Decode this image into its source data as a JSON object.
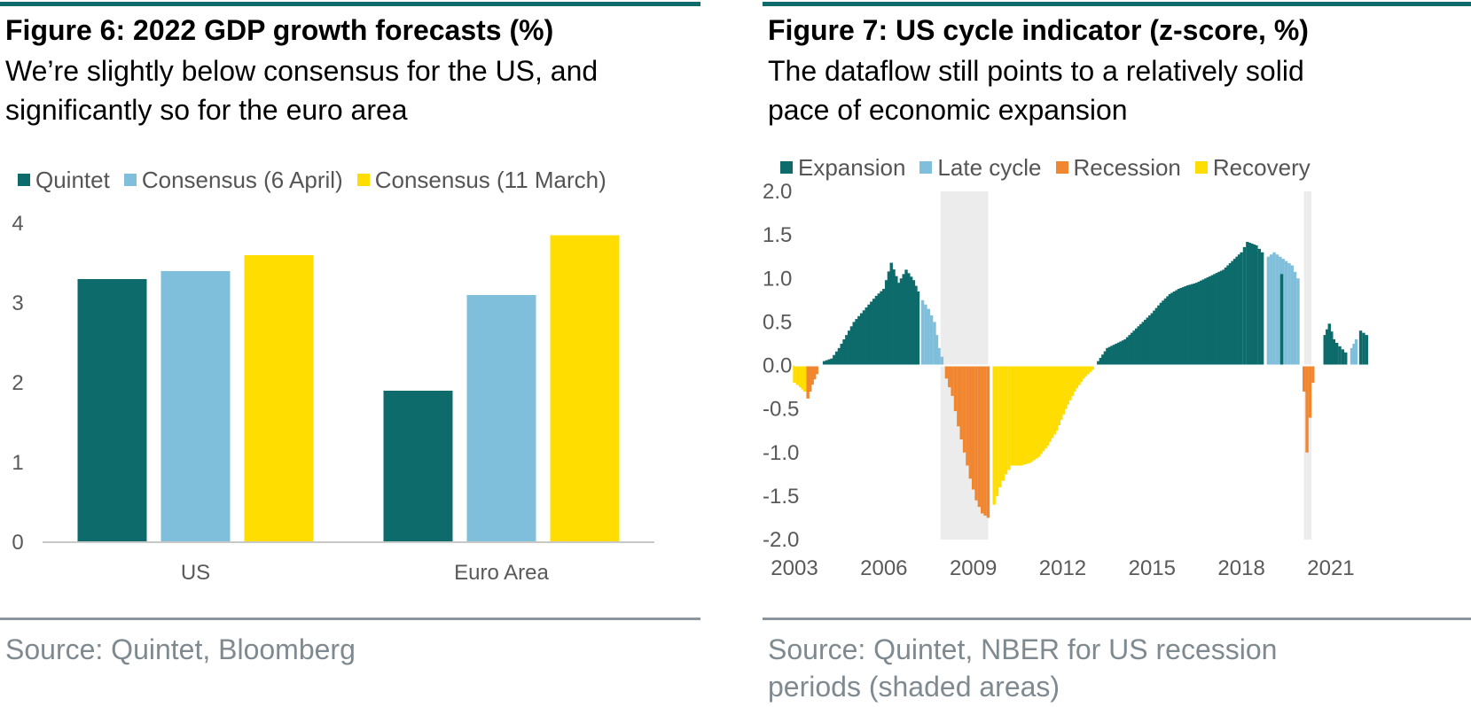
{
  "left": {
    "title": "Figure 6: 2022 GDP growth forecasts (%)",
    "subtitle_lines": [
      "We’re slightly below consensus for the US, and",
      "significantly so for the euro area"
    ],
    "source": "Source: Quintet, Bloomberg"
  },
  "right": {
    "title": "Figure 7: US cycle indicator (z-score, %)",
    "subtitle_lines": [
      "The dataflow still points to a relatively solid",
      "pace of economic expansion"
    ],
    "source_lines": [
      "Source: Quintet, NBER for US recession",
      "periods (shaded areas)"
    ]
  },
  "colors": {
    "teal": "#0d6b6b",
    "light_blue": "#7fbfdb",
    "yellow": "#ffdd00",
    "orange": "#f0862f",
    "shade": "#ececec"
  },
  "chart_data": [
    {
      "type": "bar",
      "categories": [
        "US",
        "Euro Area"
      ],
      "series": [
        {
          "name": "Quintet",
          "values": [
            3.3,
            1.9
          ]
        },
        {
          "name": "Consensus (6 April)",
          "values": [
            3.4,
            3.1
          ]
        },
        {
          "name": "Consensus (11 March)",
          "values": [
            3.6,
            3.85
          ]
        }
      ],
      "ylim": [
        0,
        4
      ],
      "yticks": [
        "0",
        "1",
        "2",
        "3",
        "4"
      ],
      "legend_position": "top",
      "grid": false
    },
    {
      "type": "bar",
      "x_start_year": 2003,
      "x_end_year": 2022.4,
      "xticks": [
        "2003",
        "2006",
        "2009",
        "2012",
        "2015",
        "2018",
        "2021"
      ],
      "ylim": [
        -2.0,
        2.0
      ],
      "yticks": [
        "2.0",
        "1.5",
        "1.0",
        "0.5",
        "0.0",
        "-0.5",
        "-1.0",
        "-1.5",
        "-2.0"
      ],
      "legend_position": "top",
      "grid": false,
      "recession_periods": [
        [
          2007.9,
          2009.5
        ],
        [
          2020.1,
          2020.35
        ]
      ],
      "phases": [
        {
          "name": "Expansion",
          "color_key": "teal"
        },
        {
          "name": "Late cycle",
          "color_key": "light_blue"
        },
        {
          "name": "Recession",
          "color_key": "orange"
        },
        {
          "name": "Recovery",
          "color_key": "yellow"
        }
      ],
      "series": [
        {
          "phase": "Recovery",
          "points": [
            [
              2003.0,
              -0.2
            ],
            [
              2003.2,
              -0.25
            ],
            [
              2003.35,
              -0.3
            ]
          ]
        },
        {
          "phase": "Recession",
          "points": [
            [
              2003.45,
              -0.38
            ],
            [
              2003.6,
              -0.22
            ],
            [
              2003.75,
              -0.1
            ]
          ]
        },
        {
          "phase": "Expansion",
          "points": [
            [
              2004.0,
              0.05
            ],
            [
              2004.25,
              0.08
            ],
            [
              2004.5,
              0.2
            ],
            [
              2004.75,
              0.35
            ],
            [
              2005.0,
              0.5
            ],
            [
              2005.25,
              0.6
            ],
            [
              2005.5,
              0.7
            ],
            [
              2005.75,
              0.8
            ],
            [
              2006.0,
              0.88
            ],
            [
              2006.25,
              1.18
            ],
            [
              2006.5,
              0.95
            ],
            [
              2006.75,
              1.1
            ],
            [
              2007.0,
              0.98
            ],
            [
              2007.15,
              0.85
            ]
          ]
        },
        {
          "phase": "Late cycle",
          "points": [
            [
              2007.3,
              0.75
            ],
            [
              2007.5,
              0.65
            ],
            [
              2007.7,
              0.5
            ],
            [
              2007.85,
              0.2
            ],
            [
              2007.95,
              0.1
            ]
          ]
        },
        {
          "phase": "Recession",
          "points": [
            [
              2008.1,
              -0.15
            ],
            [
              2008.3,
              -0.35
            ],
            [
              2008.5,
              -0.7
            ],
            [
              2008.7,
              -1.0
            ],
            [
              2008.9,
              -1.3
            ],
            [
              2009.1,
              -1.55
            ],
            [
              2009.3,
              -1.7
            ],
            [
              2009.5,
              -1.75
            ]
          ]
        },
        {
          "phase": "Recovery",
          "points": [
            [
              2009.7,
              -1.6
            ],
            [
              2009.9,
              -1.4
            ],
            [
              2010.1,
              -1.25
            ],
            [
              2010.3,
              -1.15
            ],
            [
              2010.6,
              -1.15
            ],
            [
              2010.9,
              -1.12
            ],
            [
              2011.2,
              -1.05
            ],
            [
              2011.5,
              -0.92
            ],
            [
              2011.8,
              -0.75
            ],
            [
              2012.1,
              -0.5
            ],
            [
              2012.4,
              -0.3
            ],
            [
              2012.7,
              -0.15
            ],
            [
              2013.0,
              -0.05
            ]
          ]
        },
        {
          "phase": "Expansion",
          "points": [
            [
              2013.2,
              0.05
            ],
            [
              2013.5,
              0.2
            ],
            [
              2013.8,
              0.25
            ],
            [
              2014.1,
              0.3
            ],
            [
              2014.4,
              0.4
            ],
            [
              2014.7,
              0.5
            ],
            [
              2015.0,
              0.6
            ],
            [
              2015.3,
              0.72
            ],
            [
              2015.6,
              0.82
            ],
            [
              2015.9,
              0.88
            ],
            [
              2016.2,
              0.92
            ],
            [
              2016.5,
              0.95
            ],
            [
              2016.8,
              1.0
            ],
            [
              2017.1,
              1.05
            ],
            [
              2017.4,
              1.1
            ],
            [
              2017.7,
              1.2
            ],
            [
              2018.0,
              1.3
            ],
            [
              2018.2,
              1.42
            ],
            [
              2018.5,
              1.38
            ],
            [
              2018.7,
              1.3
            ]
          ]
        },
        {
          "phase": "Late cycle",
          "points": [
            [
              2018.9,
              1.25
            ],
            [
              2019.1,
              1.3
            ],
            [
              2019.3,
              1.25
            ],
            [
              2019.5,
              1.2
            ],
            [
              2019.7,
              1.15
            ],
            [
              2019.9,
              1.0
            ]
          ]
        },
        {
          "phase": "Expansion",
          "points": [
            [
              2019.35,
              1.05
            ]
          ]
        },
        {
          "phase": "Recession",
          "points": [
            [
              2020.1,
              -0.3
            ],
            [
              2020.2,
              -1.0
            ],
            [
              2020.3,
              -0.6
            ],
            [
              2020.4,
              -0.2
            ]
          ]
        },
        {
          "phase": "Expansion",
          "points": [
            [
              2020.8,
              0.35
            ],
            [
              2020.95,
              0.48
            ],
            [
              2021.1,
              0.3
            ],
            [
              2021.3,
              0.22
            ],
            [
              2021.5,
              0.15
            ]
          ]
        },
        {
          "phase": "Late cycle",
          "points": [
            [
              2021.7,
              0.2
            ],
            [
              2021.85,
              0.3
            ]
          ]
        },
        {
          "phase": "Expansion",
          "points": [
            [
              2022.0,
              0.4
            ],
            [
              2022.2,
              0.35
            ]
          ]
        }
      ]
    }
  ]
}
